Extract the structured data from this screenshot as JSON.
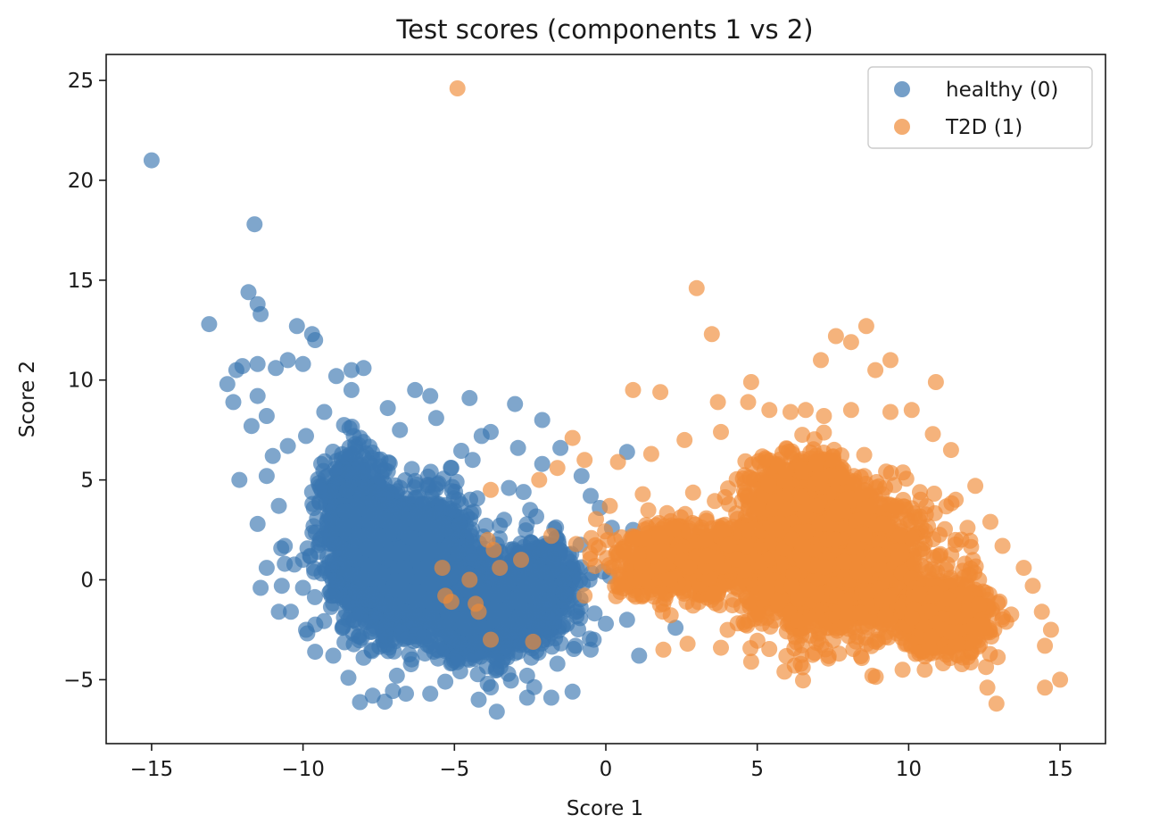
{
  "chart_data": {
    "type": "scatter",
    "title": "Test scores (components 1 vs 2)",
    "xlabel": "Score 1",
    "ylabel": "Score 2",
    "xlim": [
      -16.5,
      16.5
    ],
    "ylim": [
      -8.2,
      26.3
    ],
    "xticks": [
      -15,
      -10,
      -5,
      0,
      5,
      10,
      15
    ],
    "yticks": [
      -5,
      0,
      5,
      10,
      15,
      20,
      25
    ],
    "xtick_labels": [
      "−15",
      "−10",
      "−5",
      "0",
      "5",
      "10",
      "15"
    ],
    "ytick_labels": [
      "−5",
      "0",
      "5",
      "10",
      "15",
      "20",
      "25"
    ],
    "grid": false,
    "legend_position": "top-right",
    "series": [
      {
        "name": "healthy (0)",
        "color": "#3b76b0",
        "points": [
          [
            -15.0,
            21.0
          ],
          [
            -11.6,
            17.8
          ],
          [
            -11.8,
            14.4
          ],
          [
            -11.5,
            13.8
          ],
          [
            -11.4,
            13.3
          ],
          [
            -13.1,
            12.8
          ],
          [
            -10.2,
            12.7
          ],
          [
            -9.7,
            12.3
          ],
          [
            -9.6,
            12.0
          ],
          [
            -12.2,
            10.5
          ],
          [
            -12.5,
            9.8
          ],
          [
            -12.0,
            10.7
          ],
          [
            -11.5,
            10.8
          ],
          [
            -10.9,
            10.6
          ],
          [
            -10.5,
            11.0
          ],
          [
            -10.0,
            10.8
          ],
          [
            -11.5,
            9.2
          ],
          [
            -12.3,
            8.9
          ],
          [
            -11.2,
            8.2
          ],
          [
            -11.7,
            7.7
          ],
          [
            -10.5,
            6.7
          ],
          [
            -11.0,
            6.2
          ],
          [
            -11.2,
            5.2
          ],
          [
            -12.1,
            5.0
          ],
          [
            -10.8,
            3.7
          ],
          [
            -11.5,
            2.8
          ],
          [
            -10.6,
            1.7
          ],
          [
            -10.0,
            1.0
          ],
          [
            -11.2,
            0.6
          ],
          [
            -10.6,
            0.8
          ],
          [
            -11.4,
            -0.4
          ],
          [
            -10.7,
            -0.3
          ],
          [
            -10.0,
            -0.4
          ],
          [
            -10.8,
            -1.6
          ],
          [
            -10.4,
            -1.6
          ],
          [
            -9.9,
            -2.5
          ],
          [
            -9.6,
            -3.6
          ],
          [
            -9.0,
            -3.8
          ],
          [
            -8.5,
            -4.9
          ],
          [
            -7.7,
            -5.8
          ],
          [
            -7.3,
            -6.1
          ],
          [
            -6.6,
            -5.7
          ],
          [
            -5.8,
            -5.7
          ],
          [
            -4.2,
            -6.0
          ],
          [
            -3.6,
            -6.6
          ],
          [
            -2.6,
            -5.9
          ],
          [
            -1.8,
            -5.9
          ],
          [
            -1.1,
            -5.6
          ],
          [
            -8.4,
            10.5
          ],
          [
            -8.9,
            10.2
          ],
          [
            -8.0,
            10.6
          ],
          [
            -6.3,
            9.5
          ],
          [
            -5.8,
            9.2
          ],
          [
            -4.5,
            9.1
          ],
          [
            -3.0,
            8.8
          ],
          [
            -4.1,
            7.2
          ],
          [
            -3.8,
            7.4
          ],
          [
            -2.9,
            6.6
          ],
          [
            -2.1,
            8.0
          ],
          [
            -1.5,
            6.6
          ],
          [
            -0.8,
            5.2
          ],
          [
            -0.5,
            4.2
          ],
          [
            -0.2,
            3.6
          ],
          [
            0.2,
            2.6
          ],
          [
            0.0,
            -2.2
          ],
          [
            -0.5,
            -3.5
          ],
          [
            0.7,
            -2.0
          ],
          [
            2.3,
            -2.4
          ],
          [
            1.1,
            -3.8
          ],
          [
            0.7,
            6.4
          ],
          [
            0.9,
            2.5
          ],
          [
            -0.4,
            -3.0
          ],
          [
            -9.9,
            7.2
          ],
          [
            -9.3,
            8.4
          ],
          [
            -8.4,
            9.5
          ],
          [
            -7.2,
            8.6
          ],
          [
            -5.6,
            8.1
          ],
          [
            -6.8,
            7.5
          ],
          [
            -8.0,
            6.9
          ],
          [
            -9.4,
            5.8
          ],
          [
            -9.7,
            4.4
          ],
          [
            -9.2,
            2.9
          ],
          [
            -9.5,
            1.4
          ],
          [
            -9.0,
            -0.8
          ],
          [
            -8.7,
            -2.4
          ],
          [
            -8.0,
            -3.9
          ],
          [
            -6.9,
            -4.8
          ],
          [
            -5.3,
            -5.1
          ],
          [
            -3.9,
            -5.2
          ],
          [
            -2.6,
            -4.8
          ],
          [
            -1.6,
            -4.2
          ],
          [
            -1.0,
            -3.3
          ],
          [
            -1.4,
            -0.6
          ],
          [
            -1.9,
            1.3
          ],
          [
            -2.5,
            3.5
          ],
          [
            -3.2,
            4.6
          ],
          [
            -4.4,
            6.0
          ],
          [
            -5.1,
            5.6
          ],
          [
            -2.1,
            5.8
          ]
        ],
        "clusters": [
          {
            "center": [
              -6.5,
              0.8
            ],
            "spread": [
              1.9,
              3.0
            ],
            "count": 2400
          },
          {
            "center": [
              -4.0,
              -1.8
            ],
            "spread": [
              1.8,
              1.9
            ],
            "count": 900
          },
          {
            "center": [
              -8.3,
              3.2
            ],
            "spread": [
              1.0,
              3.0
            ],
            "count": 600
          },
          {
            "center": [
              -2.2,
              -0.2
            ],
            "spread": [
              1.3,
              2.0
            ],
            "count": 500
          }
        ]
      },
      {
        "name": "T2D (1)",
        "color": "#ef8a36",
        "points": [
          [
            -4.9,
            24.6
          ],
          [
            3.0,
            14.6
          ],
          [
            3.5,
            12.3
          ],
          [
            8.6,
            12.7
          ],
          [
            7.6,
            12.2
          ],
          [
            8.1,
            11.9
          ],
          [
            7.1,
            11.0
          ],
          [
            9.4,
            11.0
          ],
          [
            8.9,
            10.5
          ],
          [
            10.9,
            9.9
          ],
          [
            4.8,
            9.9
          ],
          [
            0.9,
            9.5
          ],
          [
            1.8,
            9.4
          ],
          [
            3.7,
            8.9
          ],
          [
            4.7,
            8.9
          ],
          [
            9.4,
            8.4
          ],
          [
            5.4,
            8.5
          ],
          [
            6.1,
            8.4
          ],
          [
            6.6,
            8.5
          ],
          [
            7.2,
            8.2
          ],
          [
            8.1,
            8.5
          ],
          [
            10.1,
            8.5
          ],
          [
            10.8,
            7.3
          ],
          [
            11.4,
            6.5
          ],
          [
            12.2,
            4.7
          ],
          [
            12.7,
            2.9
          ],
          [
            13.1,
            1.7
          ],
          [
            13.8,
            0.6
          ],
          [
            14.1,
            -0.3
          ],
          [
            14.4,
            -1.6
          ],
          [
            14.7,
            -2.5
          ],
          [
            14.5,
            -3.3
          ],
          [
            15.0,
            -5.0
          ],
          [
            14.5,
            -5.4
          ],
          [
            12.9,
            -6.2
          ],
          [
            12.6,
            -5.4
          ],
          [
            9.8,
            -4.5
          ],
          [
            8.8,
            -4.8
          ],
          [
            5.9,
            -4.6
          ],
          [
            4.8,
            -4.1
          ],
          [
            3.8,
            -3.4
          ],
          [
            2.7,
            -3.2
          ],
          [
            1.9,
            -3.5
          ],
          [
            -3.8,
            -3.0
          ],
          [
            -2.4,
            -3.1
          ],
          [
            -4.3,
            -1.2
          ],
          [
            -4.2,
            -1.6
          ],
          [
            -5.3,
            -0.8
          ],
          [
            -5.1,
            -1.1
          ],
          [
            -3.8,
            4.5
          ],
          [
            -3.7,
            1.5
          ],
          [
            -3.9,
            2.0
          ],
          [
            -5.4,
            0.6
          ],
          [
            -4.5,
            0.0
          ],
          [
            -3.5,
            0.6
          ],
          [
            -2.8,
            1.0
          ],
          [
            -1.8,
            2.2
          ],
          [
            -2.2,
            5.0
          ],
          [
            -1.6,
            5.6
          ],
          [
            -0.7,
            6.0
          ],
          [
            0.4,
            5.9
          ],
          [
            2.6,
            7.0
          ],
          [
            3.8,
            7.4
          ],
          [
            1.5,
            6.3
          ],
          [
            -1.1,
            7.1
          ]
        ],
        "clusters": [
          {
            "center": [
              7.5,
              0.8
            ],
            "spread": [
              2.6,
              3.0
            ],
            "count": 2600
          },
          {
            "center": [
              11.2,
              -1.8
            ],
            "spread": [
              1.3,
              1.5
            ],
            "count": 900
          },
          {
            "center": [
              2.5,
              0.9
            ],
            "spread": [
              2.0,
              1.6
            ],
            "count": 800
          },
          {
            "center": [
              6.5,
              4.5
            ],
            "spread": [
              1.6,
              1.6
            ],
            "count": 500
          }
        ]
      }
    ]
  }
}
